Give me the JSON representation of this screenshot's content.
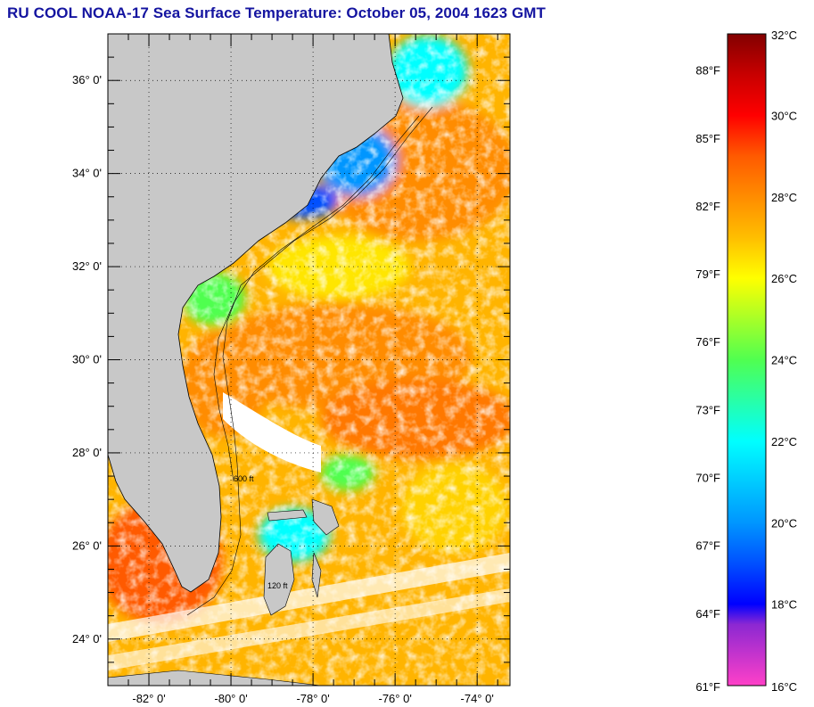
{
  "title": "RU COOL  NOAA-17  Sea Surface Temperature:  October 05, 2004 1623 GMT",
  "map": {
    "lon_range": [
      -83.0,
      -73.2
    ],
    "lat_range": [
      23.0,
      37.0
    ],
    "lat_ticks": [
      {
        "value": 36,
        "label": "36° 0'"
      },
      {
        "value": 34,
        "label": "34° 0'"
      },
      {
        "value": 32,
        "label": "32° 0'"
      },
      {
        "value": 30,
        "label": "30° 0'"
      },
      {
        "value": 28,
        "label": "28° 0'"
      },
      {
        "value": 26,
        "label": "26° 0'"
      },
      {
        "value": 24,
        "label": "24° 0'"
      }
    ],
    "lon_ticks": [
      {
        "value": -82,
        "label": "-82° 0'"
      },
      {
        "value": -80,
        "label": "-80° 0'"
      },
      {
        "value": -78,
        "label": "-78° 0'"
      },
      {
        "value": -76,
        "label": "-76° 0'"
      },
      {
        "value": -74,
        "label": "-74° 0'"
      }
    ],
    "grid": true,
    "land_color": "#c8c8c8",
    "cloud_color": "#ffffff",
    "bathymetry_labels": [
      "600 ft",
      "120 ft"
    ]
  },
  "colorbar": {
    "fahrenheit_labels": [
      "88°F",
      "85°F",
      "82°F",
      "79°F",
      "76°F",
      "73°F",
      "70°F",
      "67°F",
      "64°F",
      "61°F"
    ],
    "celsius_labels": [
      "32°C",
      "30°C",
      "28°C",
      "26°C",
      "24°C",
      "22°C",
      "20°C",
      "18°C",
      "16°C"
    ],
    "celsius_range": [
      16,
      32
    ],
    "stops": [
      {
        "c": 16,
        "color": "#ff40c8"
      },
      {
        "c": 17.5,
        "color": "#8c28d2"
      },
      {
        "c": 18,
        "color": "#0000ff"
      },
      {
        "c": 19,
        "color": "#0050ff"
      },
      {
        "c": 20,
        "color": "#0096ff"
      },
      {
        "c": 22,
        "color": "#00ffff"
      },
      {
        "c": 24,
        "color": "#50ff50"
      },
      {
        "c": 26,
        "color": "#ffff00"
      },
      {
        "c": 27,
        "color": "#ffbe00"
      },
      {
        "c": 28,
        "color": "#ff8c00"
      },
      {
        "c": 29,
        "color": "#ff5a00"
      },
      {
        "c": 30,
        "color": "#ff0000"
      },
      {
        "c": 31,
        "color": "#c80000"
      },
      {
        "c": 32,
        "color": "#820000"
      }
    ]
  }
}
